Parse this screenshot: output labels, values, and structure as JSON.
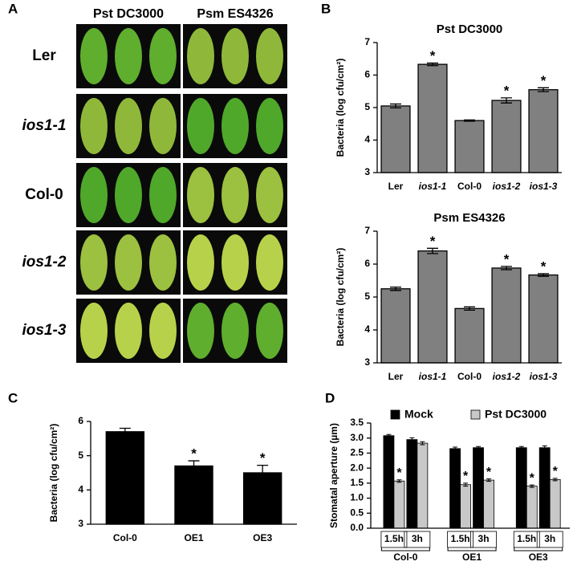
{
  "panel_labels": [
    "A",
    "B",
    "C",
    "D"
  ],
  "panel_a": {
    "columns": [
      "Pst DC3000",
      "Psm ES4326"
    ],
    "rows": [
      "Ler",
      "ios1-1",
      "Col-0",
      "ios1-2",
      "ios1-3"
    ],
    "row_italic": [
      false,
      true,
      false,
      true,
      true
    ]
  },
  "chart_data": [
    {
      "type": "bar",
      "title": "Pst DC3000",
      "y_label": "Bacteria (log cfu/cm²)",
      "categories": [
        "Ler",
        "ios1-1",
        "Col-0",
        "ios1-2",
        "ios1-3"
      ],
      "italic": [
        false,
        true,
        false,
        true,
        true
      ],
      "values": [
        5.05,
        6.33,
        4.6,
        5.22,
        5.55
      ],
      "errors": [
        0.06,
        0.04,
        0.02,
        0.08,
        0.06
      ],
      "marks": [
        null,
        "*",
        null,
        "*",
        "*"
      ],
      "color": "#808080",
      "ylim": [
        3,
        7
      ],
      "yticks": [
        3,
        4,
        5,
        6,
        7
      ]
    },
    {
      "type": "bar",
      "title": "Psm ES4326",
      "y_label": "Bacteria (log cfu/cm²)",
      "categories": [
        "Ler",
        "ios1-1",
        "Col-0",
        "ios1-2",
        "ios1-3"
      ],
      "italic": [
        false,
        true,
        false,
        true,
        true
      ],
      "values": [
        5.25,
        6.4,
        4.65,
        5.88,
        5.67
      ],
      "errors": [
        0.05,
        0.08,
        0.05,
        0.05,
        0.04
      ],
      "marks": [
        null,
        "*",
        null,
        "*",
        "*"
      ],
      "color": "#808080",
      "ylim": [
        3,
        7
      ],
      "yticks": [
        3,
        4,
        5,
        6,
        7
      ]
    },
    {
      "type": "bar",
      "y_label": "Bacteria (log cfu/cm²)",
      "categories": [
        "Col-0",
        "OE1",
        "OE3"
      ],
      "italic": [
        false,
        false,
        false
      ],
      "values": [
        5.7,
        4.7,
        4.5
      ],
      "errors": [
        0.1,
        0.15,
        0.22
      ],
      "marks": [
        null,
        "*",
        "*"
      ],
      "color": "#000000",
      "ylim": [
        3,
        6
      ],
      "yticks": [
        3,
        4,
        5,
        6
      ]
    },
    {
      "type": "grouped_bar",
      "y_label": "Stomatal aperture (µm)",
      "categories": [
        "1.5h",
        "3h",
        "1.5h",
        "3h",
        "1.5h",
        "3h"
      ],
      "groups": [
        "Col-0",
        "OE1",
        "OE3"
      ],
      "series": [
        {
          "name": "Mock",
          "color": "#000000",
          "values": [
            3.08,
            2.95,
            2.65,
            2.68,
            2.68,
            2.68
          ],
          "errors": [
            0.04,
            0.06,
            0.05,
            0.04,
            0.04,
            0.06
          ],
          "marks": [
            null,
            null,
            null,
            null,
            null,
            null
          ]
        },
        {
          "name": "Pst DC3000",
          "color": "#c8c8c8",
          "values": [
            1.57,
            2.83,
            1.45,
            1.6,
            1.4,
            1.62
          ],
          "errors": [
            0.04,
            0.05,
            0.05,
            0.04,
            0.04,
            0.04
          ],
          "marks": [
            "*",
            null,
            "*",
            "*",
            "*",
            "*"
          ]
        }
      ],
      "ylim": [
        0,
        3.5
      ],
      "yticks": [
        {
          "value": 0,
          "label": "0.0"
        },
        {
          "value": 0.5,
          "label": "0.5"
        },
        {
          "value": 1,
          "label": "1.0"
        },
        {
          "value": 1.5,
          "label": "1.5"
        },
        {
          "value": 2,
          "label": "2.0"
        },
        {
          "value": 2.5,
          "label": "2.5"
        },
        {
          "value": 3,
          "label": "3.0"
        },
        {
          "value": 3.5,
          "label": "3.5"
        }
      ]
    }
  ]
}
